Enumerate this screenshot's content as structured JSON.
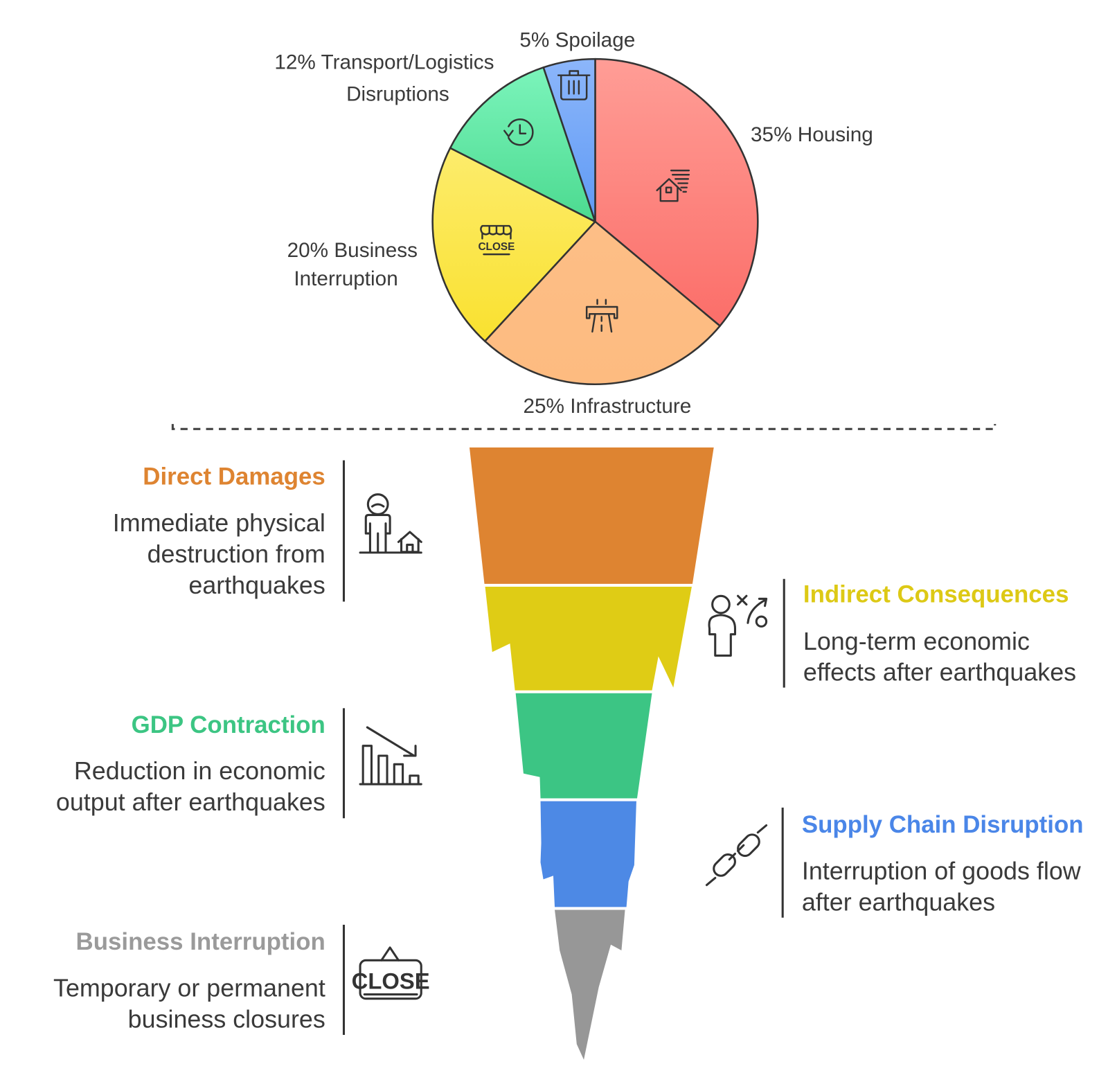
{
  "chart_data": [
    {
      "type": "pie",
      "slices": [
        {
          "label": "Housing",
          "value": 35,
          "label_lines": [
            "35% Housing"
          ],
          "icon": "house-wind-icon",
          "colors": [
            "#ff9d96",
            "#fb6e69"
          ]
        },
        {
          "label": "Infrastructure",
          "value": 25,
          "label_lines": [
            "25% Infrastructure"
          ],
          "icon": "road-bridge-icon",
          "colors": [
            "#fdbe86",
            "#fdbb80"
          ]
        },
        {
          "label": "Business Interruption",
          "value": 20,
          "label_lines": [
            "20% Business",
            "Interruption"
          ],
          "icon": "store-closed-icon",
          "colors": [
            "#fdec6c",
            "#f9e12f"
          ]
        },
        {
          "label": "Transport/Logistics Disruptions",
          "value": 12,
          "label_lines": [
            "12% Transport/Logistics",
            "Disruptions"
          ],
          "icon": "clock-history-icon",
          "colors": [
            "#7bf4bb",
            "#4cda90"
          ]
        },
        {
          "label": "Spoilage",
          "value": 5,
          "label_lines": [
            "5% Spoilage"
          ],
          "icon": "trash-icon",
          "colors": [
            "#8cb6fa",
            "#5f9af5"
          ]
        }
      ]
    },
    {
      "type": "funnel",
      "stages": [
        {
          "title": "Direct Damages",
          "description": [
            "Immediate physical",
            "destruction from",
            "earthquakes"
          ],
          "color": "#de8431",
          "title_color": "#de8431",
          "side": "left",
          "icon": "person-house-icon"
        },
        {
          "title": "Indirect Consequences",
          "description": [
            "Long-term economic",
            "effects after earthquakes"
          ],
          "color": "#dfcc15",
          "title_color": "#ddc915",
          "side": "right",
          "icon": "person-strategy-icon"
        },
        {
          "title": "GDP Contraction",
          "description": [
            "Reduction in economic",
            "output after earthquakes"
          ],
          "color": "#3cc584",
          "title_color": "#3cc583",
          "side": "left",
          "icon": "chart-decline-icon"
        },
        {
          "title": "Supply Chain Disruption",
          "description": [
            "Interruption of goods flow",
            "after earthquakes"
          ],
          "color": "#4d89e5",
          "title_color": "#4a86e8",
          "side": "right",
          "icon": "broken-chain-icon"
        },
        {
          "title": "Business Interruption",
          "description": [
            "Temporary or permanent",
            "business closures"
          ],
          "color": "#979797",
          "title_color": "#9a9a9a",
          "side": "left",
          "icon": "close-sign-icon"
        }
      ]
    }
  ]
}
